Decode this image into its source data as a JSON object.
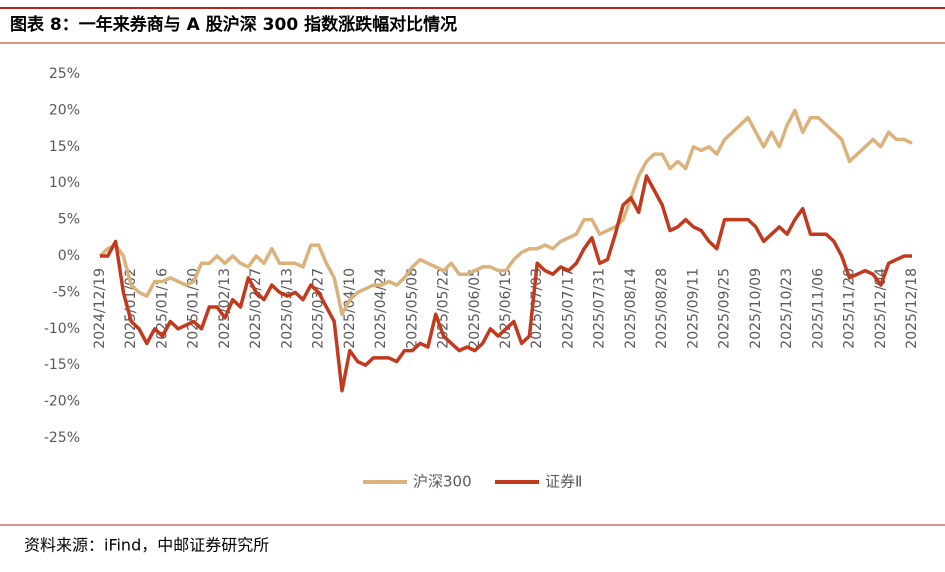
{
  "header": {
    "title": "图表 8：一年来券商与 A 股沪深 300 指数涨跌幅对比情况"
  },
  "chart_data": {
    "type": "line",
    "categories": [
      "2024/12/19",
      null,
      null,
      null,
      "2025/01/02",
      null,
      null,
      null,
      "2025/01/16",
      null,
      null,
      null,
      "2025/01/30",
      null,
      null,
      null,
      "2025/02/13",
      null,
      null,
      null,
      "2025/02/27",
      null,
      null,
      null,
      "2025/03/13",
      null,
      null,
      null,
      "2025/03/27",
      null,
      null,
      null,
      "2025/04/10",
      null,
      null,
      null,
      "2025/04/24",
      null,
      null,
      null,
      "2025/05/08",
      null,
      null,
      null,
      "2025/05/22",
      null,
      null,
      null,
      "2025/06/05",
      null,
      null,
      null,
      "2025/06/19",
      null,
      null,
      null,
      "2025/07/03",
      null,
      null,
      null,
      "2025/07/17",
      null,
      null,
      null,
      "2025/07/31",
      null,
      null,
      null,
      "2025/08/14",
      null,
      null,
      null,
      "2025/08/28",
      null,
      null,
      null,
      "2025/09/11",
      null,
      null,
      null,
      "2025/09/25",
      null,
      null,
      null,
      "2025/10/09",
      null,
      null,
      null,
      "2025/10/23",
      null,
      null,
      null,
      "2025/11/06",
      null,
      null,
      null,
      "2025/11/20",
      null,
      null,
      null,
      "2025/12/04",
      null,
      null,
      null,
      "2025/12/18"
    ],
    "series": [
      {
        "name": "沪深300",
        "color": "#dcb27c",
        "values": [
          0,
          1,
          1.5,
          0,
          -4,
          -5,
          -5.5,
          -3.5,
          -3.5,
          -3,
          -3.5,
          -4,
          -3.5,
          -1,
          -1,
          0,
          -1,
          0,
          -1,
          -1.5,
          0,
          -1,
          1,
          -1,
          -1,
          -1,
          -1.5,
          1.5,
          1.5,
          -1,
          -3,
          -8,
          -6,
          -5,
          -4.5,
          -4,
          -4,
          -3.5,
          -4,
          -3,
          -1.5,
          -0.5,
          -1,
          -1.5,
          -2,
          -1,
          -2.5,
          -2.5,
          -2,
          -1.5,
          -1.5,
          -2,
          -2,
          -0.5,
          0.5,
          1,
          1,
          1.5,
          1,
          2,
          2.5,
          3,
          5,
          5,
          3,
          3.5,
          4,
          5,
          8,
          11,
          13,
          14,
          14,
          12,
          13,
          12,
          15,
          14.5,
          15,
          14,
          16,
          17,
          18,
          19,
          17,
          15,
          17,
          15,
          18,
          20,
          17,
          19,
          19,
          18,
          17,
          16,
          13,
          14,
          15,
          16,
          15,
          17,
          16,
          16,
          15.5
        ]
      },
      {
        "name": "证券Ⅱ",
        "color": "#c23a1e",
        "values": [
          0,
          0,
          2,
          -5,
          -9,
          -10,
          -12,
          -10,
          -11,
          -9,
          -10,
          -9.5,
          -9,
          -10,
          -7,
          -7,
          -8.5,
          -6,
          -7,
          -3,
          -5,
          -6,
          -4,
          -5,
          -5.5,
          -5,
          -6,
          -4,
          -5,
          -7,
          -9,
          -18.5,
          -13,
          -14.5,
          -15,
          -14,
          -14,
          -14,
          -14.5,
          -13,
          -13,
          -12,
          -12.5,
          -8,
          -11,
          -12,
          -13,
          -12.5,
          -13,
          -12,
          -10,
          -11,
          -10,
          -9,
          -12,
          -11,
          -1,
          -2,
          -2.5,
          -1.5,
          -2,
          -1,
          1,
          2.5,
          -1,
          -0.5,
          3,
          7,
          8,
          6,
          11,
          9,
          7,
          3.5,
          4,
          5,
          4,
          3.5,
          2,
          1,
          5,
          5,
          5,
          5,
          4,
          2,
          3,
          4,
          3,
          5,
          6.5,
          3,
          3,
          3,
          2,
          0,
          -3,
          -2.5,
          -2,
          -2.5,
          -4,
          -1,
          -0.5,
          0,
          0
        ]
      }
    ],
    "ylim": [
      -25,
      25
    ],
    "yticks": [
      {
        "value": -25,
        "label": "-25%"
      },
      {
        "value": -20,
        "label": "-20%"
      },
      {
        "value": -15,
        "label": "-15%"
      },
      {
        "value": -10,
        "label": "-10%"
      },
      {
        "value": -5,
        "label": "-5%"
      },
      {
        "value": 0,
        "label": "0%"
      },
      {
        "value": 5,
        "label": "5%"
      },
      {
        "value": 10,
        "label": "10%"
      },
      {
        "value": 15,
        "label": "15%"
      },
      {
        "value": 20,
        "label": "20%"
      },
      {
        "value": 25,
        "label": "25%"
      }
    ],
    "grid": false,
    "legend": "bottom"
  },
  "source": "资料来源：iFind，中邮证券研究所"
}
